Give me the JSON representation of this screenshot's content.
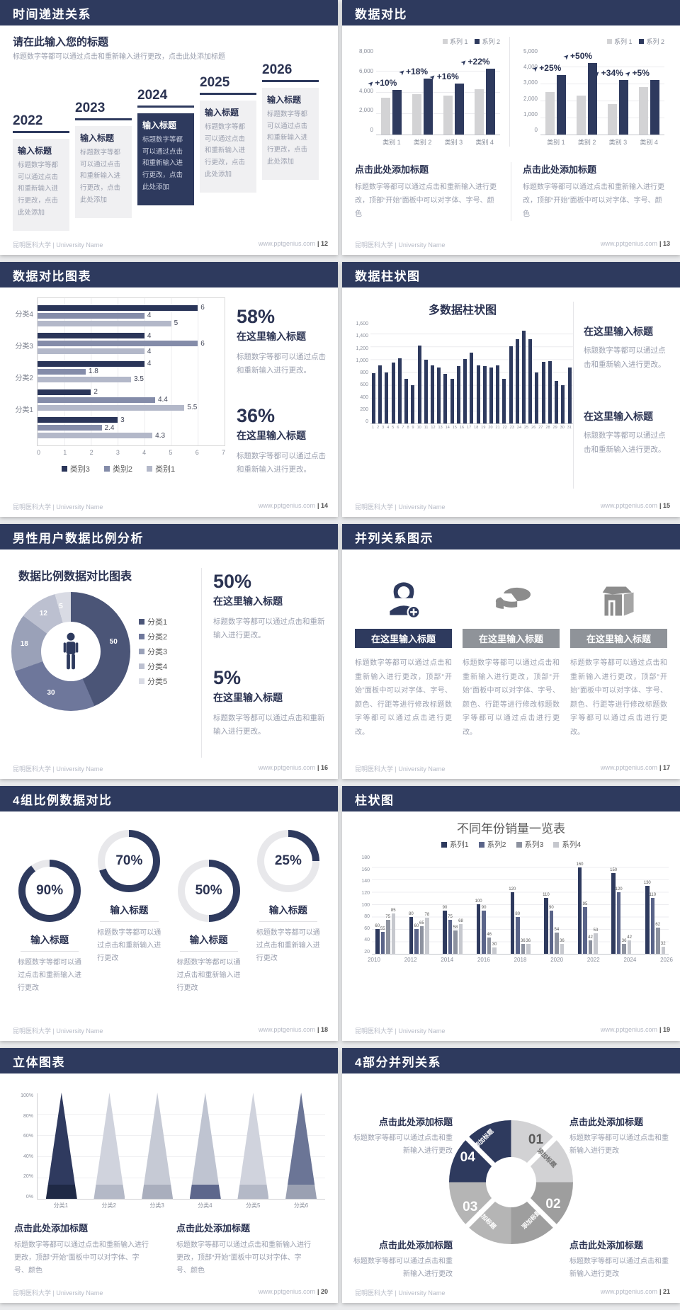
{
  "footer": {
    "org": "昆明医科大学 | University Name",
    "site": "www.pptgenius.com"
  },
  "colors": {
    "accent_navy": "#2e3a5e",
    "slate": "#848ca9",
    "light_slate": "#b3b8c9",
    "gray_bar": "#d3d3d5",
    "text_gray": "#9a9fae"
  },
  "slides": [
    {
      "type": "timeline",
      "title": "时间递进关系",
      "page_label": "| 12",
      "heading": "请在此输入您的标题",
      "subtext": "标题数字等都可以通过点击和重新输入进行更改，点击此处添加标题",
      "steps": [
        {
          "year": "2022",
          "card_title": "输入标题",
          "body": "标题数字等都可以通过点击和重新输入进行更改，点击此处添加",
          "highlight": false
        },
        {
          "year": "2023",
          "card_title": "输入标题",
          "body": "标题数字等都可以通过点击和重新输入进行更改，点击此处添加",
          "highlight": false
        },
        {
          "year": "2024",
          "card_title": "输入标题",
          "body": "标题数字等都可以通过点击和重新输入进行更改，点击此处添加",
          "highlight": true
        },
        {
          "year": "2025",
          "card_title": "输入标题",
          "body": "标题数字等都可以通过点击和重新输入进行更改，点击此处添加",
          "highlight": false
        },
        {
          "year": "2026",
          "card_title": "输入标题",
          "body": "标题数字等都可以通过点击和重新输入进行更改，点击此处添加",
          "highlight": false
        }
      ]
    },
    {
      "type": "dual-bar",
      "title": "数据对比",
      "page_label": "| 13",
      "charts": [
        {
          "legend": [
            "系列 1",
            "系列 2"
          ],
          "yticks": [
            "8,000",
            "6,000",
            "4,000",
            "2,000",
            "0"
          ],
          "ymax": 8000,
          "categories": [
            "类别 1",
            "类别 2",
            "类别 3",
            "类别 4"
          ],
          "series1": [
            3500,
            3800,
            3700,
            4300
          ],
          "series2": [
            4200,
            5300,
            4800,
            6200
          ],
          "deltas": [
            "+10%",
            "+18%",
            "+16%",
            "+22%"
          ]
        },
        {
          "legend": [
            "系列 1",
            "系列 2"
          ],
          "yticks": [
            "5,000",
            "4,000",
            "3,000",
            "2,000",
            "1,000",
            "0"
          ],
          "ymax": 5000,
          "categories": [
            "类别 1",
            "类别 2",
            "类别 3",
            "类别 4"
          ],
          "series1": [
            2500,
            2300,
            1800,
            2800
          ],
          "series2": [
            3500,
            4200,
            3200,
            3200
          ],
          "deltas": [
            "+25%",
            "+50%",
            "+34%",
            "+5%"
          ]
        }
      ],
      "blocks": [
        {
          "heading": "点击此处添加标题",
          "body": "标题数字等都可以通过点击和重新输入进行更改，顶部“开始”面板中可以对字体、字号、颜色"
        },
        {
          "heading": "点击此处添加标题",
          "body": "标题数字等都可以通过点击和重新输入进行更改，顶部“开始”面板中可以对字体、字号、颜色"
        }
      ]
    },
    {
      "type": "hbar",
      "title": "数据对比图表",
      "page_label": "| 14",
      "groups": [
        {
          "label": "分类4",
          "values": [
            6,
            4,
            5
          ]
        },
        {
          "label": "分类3",
          "values": [
            4,
            6,
            4
          ]
        },
        {
          "label": "分类2",
          "values": [
            4,
            1.8,
            3.5
          ]
        },
        {
          "label": "分类1",
          "values": [
            2,
            4.4,
            5.5
          ]
        },
        {
          "label": "",
          "values": [
            3,
            2.4,
            4.3
          ]
        }
      ],
      "xmax": 7,
      "xticks": [
        "0",
        "1",
        "2",
        "3",
        "4",
        "5",
        "6",
        "7"
      ],
      "legend": [
        {
          "label": "类别3",
          "color": "#2a3559"
        },
        {
          "label": "类别2",
          "color": "#848ca9"
        },
        {
          "label": "类别1",
          "color": "#b3b8c9"
        }
      ],
      "stats": [
        {
          "pct": "58%",
          "heading": "在这里输入标题",
          "body": "标题数字等都可以通过点击和重新输入进行更改。"
        },
        {
          "pct": "36%",
          "heading": "在这里输入标题",
          "body": "标题数字等都可以通过点击和重新输入进行更改。"
        }
      ]
    },
    {
      "type": "multibar",
      "title": "数据柱状图",
      "page_label": "| 15",
      "chart_title": "多数据柱状图",
      "yticks": [
        "1,600",
        "1,400",
        "1,200",
        "1,000",
        "800",
        "600",
        "400",
        "200",
        "0"
      ],
      "ymax": 1600,
      "values": [
        780,
        900,
        800,
        950,
        1020,
        700,
        600,
        1210,
        990,
        900,
        870,
        770,
        700,
        890,
        1000,
        1100,
        900,
        890,
        870,
        900,
        700,
        1200,
        1310,
        1450,
        1310,
        800,
        960,
        970,
        660,
        600,
        870
      ],
      "blocks": [
        {
          "heading": "在这里输入标题",
          "body": "标题数字等都可以通过点击和重新输入进行更改。"
        },
        {
          "heading": "在这里输入标题",
          "body": "标题数字等都可以通过点击和重新输入进行更改。"
        }
      ]
    },
    {
      "type": "donut",
      "title": "男性用户数据比例分析",
      "page_label": "| 16",
      "chart_title": "数据比例数据对比图表",
      "slices": [
        {
          "label": "分类1",
          "value": 50,
          "color": "#4b5577"
        },
        {
          "label": "分类2",
          "value": 30,
          "color": "#6e779b"
        },
        {
          "label": "分类3",
          "value": 18,
          "color": "#9aa1b8"
        },
        {
          "label": "分类4",
          "value": 12,
          "color": "#bcc0d0"
        },
        {
          "label": "分类5",
          "value": 5,
          "color": "#d9dbe4"
        }
      ],
      "stats": [
        {
          "pct": "50%",
          "heading": "在这里输入标题",
          "body": "标题数字等都可以通过点击和重新输入进行更改。"
        },
        {
          "pct": "5%",
          "heading": "在这里输入标题",
          "body": "标题数字等都可以通过点击和重新输入进行更改。"
        }
      ]
    },
    {
      "type": "parallel",
      "title": "并列关系图示",
      "page_label": "| 17",
      "items": [
        {
          "icon": "female-user-plus-icon",
          "heading": "在这里输入标题",
          "body": "标题数字等都可以通过点击和重新输入进行更改，顶部“开始”面板中可以对字体、字号、颜色、行距等进行修改标题数字等都可以通过点击进行更改。",
          "accent": true
        },
        {
          "icon": "pie-3d-icon",
          "heading": "在这里输入标题",
          "body": "标题数字等都可以通过点击和重新输入进行更改，顶部“开始”面板中可以对字体、字号、颜色、行距等进行修改标题数字等都可以通过点击进行更改。",
          "accent": false
        },
        {
          "icon": "store-3d-icon",
          "heading": "在这里输入标题",
          "body": "标题数字等都可以通过点击和重新输入进行更改，顶部“开始”面板中可以对字体、字号、颜色、行距等进行修改标题数字等都可以通过点击进行更改。",
          "accent": false
        }
      ]
    },
    {
      "type": "rings",
      "title": "4组比例数据对比",
      "page_label": "| 18",
      "rings": [
        {
          "pct": 90,
          "pct_label": "90%",
          "heading": "输入标题",
          "body": "标题数字等都可以通过点击和重新输入进行更改",
          "raised": false
        },
        {
          "pct": 70,
          "pct_label": "70%",
          "heading": "输入标题",
          "body": "标题数字等都可以通过点击和重新输入进行更改",
          "raised": true
        },
        {
          "pct": 50,
          "pct_label": "50%",
          "heading": "输入标题",
          "body": "标题数字等都可以通过点击和重新输入进行更改",
          "raised": false
        },
        {
          "pct": 25,
          "pct_label": "25%",
          "heading": "输入标题",
          "body": "标题数字等都可以通过点击和重新输入进行更改",
          "raised": true
        }
      ]
    },
    {
      "type": "grouped-bar",
      "title": "柱状图",
      "page_label": "| 19",
      "chart_title": "不同年份销量一览表",
      "legend": [
        {
          "label": "系列1",
          "color": "#2e3a5e"
        },
        {
          "label": "系列2",
          "color": "#5a6489"
        },
        {
          "label": "系列3",
          "color": "#8d929f"
        },
        {
          "label": "系列4",
          "color": "#c6c8ce"
        }
      ],
      "categories": [
        "2010",
        "2012",
        "2014",
        "2016",
        "2018",
        "2020",
        "2022",
        "2024",
        "2026"
      ],
      "series": [
        {
          "name": "系列1",
          "values": [
            60,
            80,
            90,
            100,
            120,
            110,
            160,
            150,
            130
          ]
        },
        {
          "name": "系列2",
          "values": [
            55,
            60,
            75,
            90,
            80,
            90,
            95,
            120,
            110
          ]
        },
        {
          "name": "系列3",
          "values": [
            75,
            65,
            58,
            46,
            36,
            54,
            42,
            36,
            62
          ]
        },
        {
          "name": "系列4",
          "values": [
            85,
            78,
            68,
            30,
            36,
            36,
            53,
            42,
            32
          ]
        }
      ],
      "yticks": [
        "180",
        "160",
        "140",
        "120",
        "100",
        "80",
        "60",
        "40",
        "20"
      ],
      "ymin": 20,
      "ymax": 180
    },
    {
      "type": "cones",
      "title": "立体图表",
      "page_label": "| 20",
      "yticks": [
        "100%",
        "80%",
        "60%",
        "40%",
        "20%",
        "0%"
      ],
      "categories": [
        "分类1",
        "分类2",
        "分类3",
        "分类4",
        "分类5",
        "分类6"
      ],
      "cones": [
        {
          "body": "#2f3a5f",
          "base": "#1f2945"
        },
        {
          "body": "#d0d3dd",
          "base": "#b4b9c7"
        },
        {
          "body": "#c6cad5",
          "base": "#a9aebd"
        },
        {
          "body": "#bfc4d1",
          "base": "#5d678c"
        },
        {
          "body": "#d0d3dd",
          "base": "#b4b9c7"
        },
        {
          "body": "#6b7596",
          "base": "#9aa0b2"
        }
      ],
      "blocks": [
        {
          "heading": "点击此处添加标题",
          "body": "标题数字等都可以通过点击和重新输入进行更改，顶部“开始”面板中可以对字体、字号、颜色"
        },
        {
          "heading": "点击此处添加标题",
          "body": "标题数字等都可以通过点击和重新输入进行更改，顶部“开始”面板中可以对字体、字号、颜色"
        }
      ]
    },
    {
      "type": "cycle",
      "title": "4部分并列关系",
      "page_label": "| 21",
      "segments": [
        {
          "num": "01",
          "label": "添加标题"
        },
        {
          "num": "02",
          "label": "添加标题"
        },
        {
          "num": "03",
          "label": "添加标题"
        },
        {
          "num": "04",
          "label": "添加标题"
        }
      ],
      "blocks": [
        {
          "heading": "点击此处添加标题",
          "body": "标题数字等都可以通过点击和重新输入进行更改"
        },
        {
          "heading": "点击此处添加标题",
          "body": "标题数字等都可以通过点击和重新输入进行更改"
        },
        {
          "heading": "点击此处添加标题",
          "body": "标题数字等都可以通过点击和重新输入进行更改"
        },
        {
          "heading": "点击此处添加标题",
          "body": "标题数字等都可以通过点击和重新输入进行更改"
        }
      ]
    }
  ],
  "chart_data": [
    {
      "type": "bar",
      "slide": "数据对比-左",
      "categories": [
        "类别 1",
        "类别 2",
        "类别 3",
        "类别 4"
      ],
      "series": [
        {
          "name": "系列 1",
          "values": [
            3500,
            3800,
            3700,
            4300
          ]
        },
        {
          "name": "系列 2",
          "values": [
            4200,
            5300,
            4800,
            6200
          ]
        }
      ],
      "annotations": [
        "+10%",
        "+18%",
        "+16%",
        "+22%"
      ],
      "ylim": [
        0,
        8000
      ],
      "legend_position": "top-right"
    },
    {
      "type": "bar",
      "slide": "数据对比-右",
      "categories": [
        "类别 1",
        "类别 2",
        "类别 3",
        "类别 4"
      ],
      "series": [
        {
          "name": "系列 1",
          "values": [
            2500,
            2300,
            1800,
            2800
          ]
        },
        {
          "name": "系列 2",
          "values": [
            3500,
            4200,
            3200,
            3200
          ]
        }
      ],
      "annotations": [
        "+25%",
        "+50%",
        "+34%",
        "+5%"
      ],
      "ylim": [
        0,
        5000
      ],
      "legend_position": "top-right"
    },
    {
      "type": "bar",
      "orientation": "horizontal",
      "slide": "数据对比图表",
      "categories": [
        "分类4",
        "分类3",
        "分类2",
        "分类1",
        ""
      ],
      "series": [
        {
          "name": "类别3",
          "values": [
            6,
            4,
            4,
            2,
            3
          ]
        },
        {
          "name": "类别2",
          "values": [
            4,
            6,
            1.8,
            4.4,
            2.4
          ]
        },
        {
          "name": "类别1",
          "values": [
            5,
            4,
            3.5,
            5.5,
            4.3
          ]
        }
      ],
      "xlim": [
        0,
        7
      ],
      "legend_position": "bottom"
    },
    {
      "type": "bar",
      "slide": "数据柱状图",
      "title": "多数据柱状图",
      "x": [
        1,
        2,
        3,
        4,
        5,
        6,
        7,
        8,
        9,
        10,
        11,
        12,
        13,
        14,
        15,
        16,
        17,
        18,
        19,
        20,
        21,
        22,
        23,
        24,
        25,
        26,
        27,
        28,
        29,
        30,
        31
      ],
      "values": [
        780,
        900,
        800,
        950,
        1020,
        700,
        600,
        1210,
        990,
        900,
        870,
        770,
        700,
        890,
        1000,
        1100,
        900,
        890,
        870,
        900,
        700,
        1200,
        1310,
        1450,
        1310,
        800,
        960,
        970,
        660,
        600,
        870
      ],
      "ylim": [
        0,
        1600
      ]
    },
    {
      "type": "pie",
      "slide": "男性用户数据比例分析",
      "title": "数据比例数据对比图表",
      "labels": [
        "分类1",
        "分类2",
        "分类3",
        "分类4",
        "分类5"
      ],
      "values": [
        50,
        30,
        18,
        12,
        5
      ]
    },
    {
      "type": "pie",
      "slide": "4组比例数据对比",
      "labels": [
        "输入标题",
        "输入标题",
        "输入标题",
        "输入标题"
      ],
      "values": [
        90,
        70,
        50,
        25
      ]
    },
    {
      "type": "bar",
      "slide": "柱状图",
      "title": "不同年份销量一览表",
      "categories": [
        "2010",
        "2012",
        "2014",
        "2016",
        "2018",
        "2020",
        "2022",
        "2024",
        "2026"
      ],
      "series": [
        {
          "name": "系列1",
          "values": [
            60,
            80,
            90,
            100,
            120,
            110,
            160,
            150,
            130
          ]
        },
        {
          "name": "系列2",
          "values": [
            55,
            60,
            75,
            90,
            80,
            90,
            95,
            120,
            110
          ]
        },
        {
          "name": "系列3",
          "values": [
            75,
            65,
            58,
            46,
            36,
            54,
            42,
            36,
            62
          ]
        },
        {
          "name": "系列4",
          "values": [
            85,
            78,
            68,
            30,
            36,
            36,
            53,
            42,
            32
          ]
        }
      ],
      "ylim": [
        20,
        180
      ],
      "legend_position": "top"
    },
    {
      "type": "area",
      "subtype": "3d-cone",
      "slide": "立体图表",
      "categories": [
        "分类1",
        "分类2",
        "分类3",
        "分类4",
        "分类5",
        "分类6"
      ],
      "values": [
        100,
        100,
        100,
        100,
        100,
        100
      ],
      "ylim": [
        0,
        100
      ]
    }
  ]
}
